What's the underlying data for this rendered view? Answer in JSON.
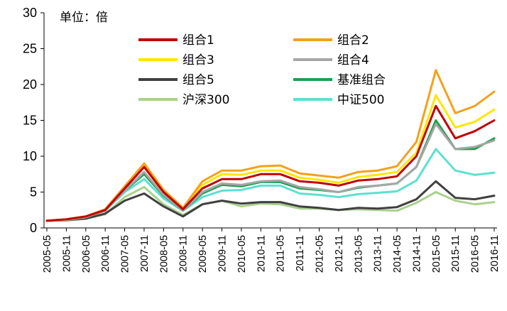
{
  "chart_data": {
    "type": "line",
    "unit_label": "单位：倍",
    "ylim": [
      0,
      30
    ],
    "yticks": [
      "0",
      "5",
      "10",
      "15",
      "20",
      "25",
      "30"
    ],
    "x_categories": [
      "2005-05",
      "2005-11",
      "2006-05",
      "2006-11",
      "2007-05",
      "2007-11",
      "2008-05",
      "2008-11",
      "2009-05",
      "2009-11",
      "2010-05",
      "2010-11",
      "2011-05",
      "2011-11",
      "2012-05",
      "2012-11",
      "2013-05",
      "2013-11",
      "2014-05",
      "2014-11",
      "2015-05",
      "2015-11",
      "2016-05",
      "2016-11"
    ],
    "legend_position": "top",
    "series": [
      {
        "name": "组合1",
        "color": "#C00000",
        "values": [
          1.0,
          1.2,
          1.6,
          2.5,
          5.5,
          8.5,
          5.0,
          2.6,
          5.5,
          6.8,
          6.8,
          7.5,
          7.5,
          6.5,
          6.3,
          5.9,
          6.6,
          6.8,
          7.2,
          10.0,
          17.0,
          12.5,
          13.5,
          15.0
        ]
      },
      {
        "name": "组合2",
        "color": "#F4A11C",
        "values": [
          1.0,
          1.2,
          1.6,
          2.6,
          5.8,
          9.0,
          5.3,
          2.8,
          6.5,
          8.0,
          8.0,
          8.6,
          8.7,
          7.6,
          7.3,
          7.0,
          7.8,
          8.0,
          8.6,
          12.0,
          22.0,
          16.0,
          17.0,
          19.0
        ]
      },
      {
        "name": "组合3",
        "color": "#FFE600",
        "values": [
          1.0,
          1.2,
          1.6,
          2.5,
          5.6,
          8.6,
          5.1,
          2.7,
          6.0,
          7.5,
          7.4,
          8.0,
          8.0,
          7.0,
          6.7,
          6.3,
          7.1,
          7.4,
          7.8,
          10.5,
          18.5,
          14.0,
          14.8,
          16.5
        ]
      },
      {
        "name": "组合4",
        "color": "#A6A6A6",
        "values": [
          1.0,
          1.1,
          1.5,
          2.4,
          5.2,
          7.8,
          4.6,
          2.4,
          5.0,
          6.2,
          6.0,
          6.5,
          6.6,
          5.7,
          5.4,
          5.0,
          5.7,
          5.9,
          6.2,
          8.5,
          14.5,
          11.0,
          11.3,
          12.2
        ]
      },
      {
        "name": "组合5",
        "color": "#404040",
        "values": [
          1.0,
          1.1,
          1.3,
          2.0,
          3.8,
          4.8,
          3.0,
          1.6,
          3.3,
          3.8,
          3.4,
          3.6,
          3.6,
          3.0,
          2.8,
          2.5,
          2.8,
          2.7,
          2.9,
          4.0,
          6.5,
          4.2,
          4.0,
          4.5
        ]
      },
      {
        "name": "基准组合",
        "color": "#1BA04F",
        "values": [
          1.0,
          1.1,
          1.5,
          2.5,
          5.2,
          7.5,
          4.5,
          2.4,
          4.8,
          6.0,
          5.8,
          6.4,
          6.4,
          5.5,
          5.3,
          5.0,
          5.6,
          5.9,
          6.2,
          8.5,
          15.0,
          11.0,
          11.0,
          12.5
        ]
      },
      {
        "name": "沪深300",
        "color": "#A9D18E",
        "values": [
          1.0,
          1.0,
          1.3,
          1.9,
          4.3,
          5.7,
          3.3,
          1.8,
          3.3,
          3.8,
          3.0,
          3.4,
          3.3,
          2.7,
          2.7,
          2.5,
          2.6,
          2.5,
          2.4,
          3.5,
          5.0,
          3.8,
          3.3,
          3.6
        ]
      },
      {
        "name": "中证500",
        "color": "#5CE1CF",
        "values": [
          1.0,
          1.2,
          1.6,
          2.4,
          5.0,
          6.8,
          4.1,
          2.4,
          4.3,
          5.2,
          5.3,
          5.9,
          5.9,
          4.8,
          4.6,
          4.3,
          4.7,
          4.9,
          5.1,
          6.6,
          11.0,
          8.0,
          7.4,
          7.7
        ]
      }
    ]
  }
}
